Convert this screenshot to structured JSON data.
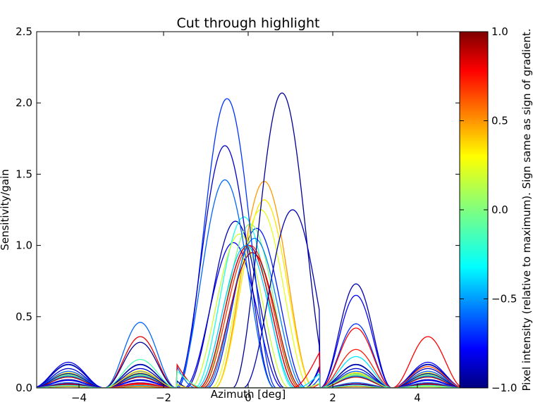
{
  "chart_data": {
    "type": "line",
    "title": "Cut through highlight",
    "xlabel": "Azimuth [deg]",
    "ylabel": "Sensitivity/gain",
    "xlim": [
      -5,
      5
    ],
    "ylim": [
      0,
      2.5
    ],
    "xticks": [
      -4,
      -2,
      0,
      2,
      4
    ],
    "yticks": [
      0.0,
      0.5,
      1.0,
      1.5,
      2.0,
      2.5
    ],
    "xtick_labels": [
      "−4",
      "−2",
      "0",
      "2",
      "4"
    ],
    "ytick_labels": [
      "0.0",
      "0.5",
      "1.0",
      "1.5",
      "2.0",
      "2.5"
    ],
    "grid": false,
    "legend": "none",
    "colorbar": {
      "label": "Pixel intensity (relative to maximum). Sign same as sign of gradient.",
      "range": [
        -1.0,
        1.0
      ],
      "ticks": [
        -1.0,
        -0.5,
        0.0,
        0.5,
        1.0
      ],
      "tick_labels": [
        "−1.0",
        "−0.5",
        "0.0",
        "0.5",
        "1.0"
      ],
      "colormap": "jet"
    },
    "series": [
      {
        "values_peak": 1.02,
        "center": -0.35,
        "color_value": -0.75
      },
      {
        "values_peak": 1.0,
        "center": 0.0,
        "color_value": -0.9
      },
      {
        "values_peak": 1.17,
        "center": -0.3,
        "color_value": -0.9
      },
      {
        "values_peak": 1.12,
        "center": 0.2,
        "color_value": -0.7
      },
      {
        "values_peak": 1.2,
        "center": -0.1,
        "color_value": -0.2
      },
      {
        "values_peak": 1.15,
        "center": 0.05,
        "color_value": 0.0
      },
      {
        "values_peak": 1.08,
        "center": -0.2,
        "color_value": 0.15
      },
      {
        "values_peak": 1.45,
        "center": 0.38,
        "color_value": 0.45
      },
      {
        "values_peak": 1.32,
        "center": 0.38,
        "color_value": 0.3
      },
      {
        "values_peak": 1.25,
        "center": 0.3,
        "color_value": 0.2
      },
      {
        "values_peak": 1.0,
        "center": 0.0,
        "color_value": 0.8
      },
      {
        "values_peak": 1.0,
        "center": 0.05,
        "color_value": 0.65
      },
      {
        "values_peak": 1.0,
        "center": -0.05,
        "color_value": -0.35
      },
      {
        "values_peak": 1.05,
        "center": 0.15,
        "color_value": -0.5
      },
      {
        "values_peak": 0.95,
        "center": 0.1,
        "color_value": 0.9
      },
      {
        "values_peak": 2.03,
        "center": -0.5,
        "color_value": -0.65
      },
      {
        "values_peak": 1.7,
        "center": -0.55,
        "color_value": -0.85
      },
      {
        "values_peak": 1.46,
        "center": -0.55,
        "color_value": -0.55
      },
      {
        "values_peak": 2.07,
        "center": 0.8,
        "color_value": -0.95
      },
      {
        "values_peak": 1.25,
        "center": 1.05,
        "color_value": -0.9
      },
      {
        "values_peak": 0.73,
        "center": 2.5,
        "color_value": -0.9
      },
      {
        "values_peak": 0.65,
        "center": 2.5,
        "color_value": -0.75
      },
      {
        "values_peak": 0.45,
        "center": 2.55,
        "color_value": -0.65
      },
      {
        "values_peak": 0.42,
        "center": 2.2,
        "color_value": 0.75
      },
      {
        "values_peak": 0.36,
        "center": 4.0,
        "color_value": 0.75
      },
      {
        "values_peak": 0.46,
        "center": -2.4,
        "color_value": -0.55
      },
      {
        "values_peak": 0.36,
        "center": -2.3,
        "color_value": 0.8
      },
      {
        "values_peak": 0.32,
        "center": -2.55,
        "color_value": -0.95
      },
      {
        "values_peak": 0.18,
        "center": -4.1,
        "color_value": -0.8
      },
      {
        "values_peak": 0.18,
        "center": 4.2,
        "color_value": -0.75
      },
      {
        "values_peak": 0.27,
        "center": 2.6,
        "color_value": 0.7
      },
      {
        "values_peak": 0.12,
        "center": -2.5,
        "color_value": 0.3
      },
      {
        "values_peak": 0.1,
        "center": 2.4,
        "color_value": 0.1
      },
      {
        "values_peak": 0.22,
        "center": 2.3,
        "color_value": -0.3
      },
      {
        "values_peak": 0.15,
        "center": 4.1,
        "color_value": 0.6
      },
      {
        "values_peak": 0.2,
        "center": -2.2,
        "color_value": -0.1
      }
    ]
  }
}
